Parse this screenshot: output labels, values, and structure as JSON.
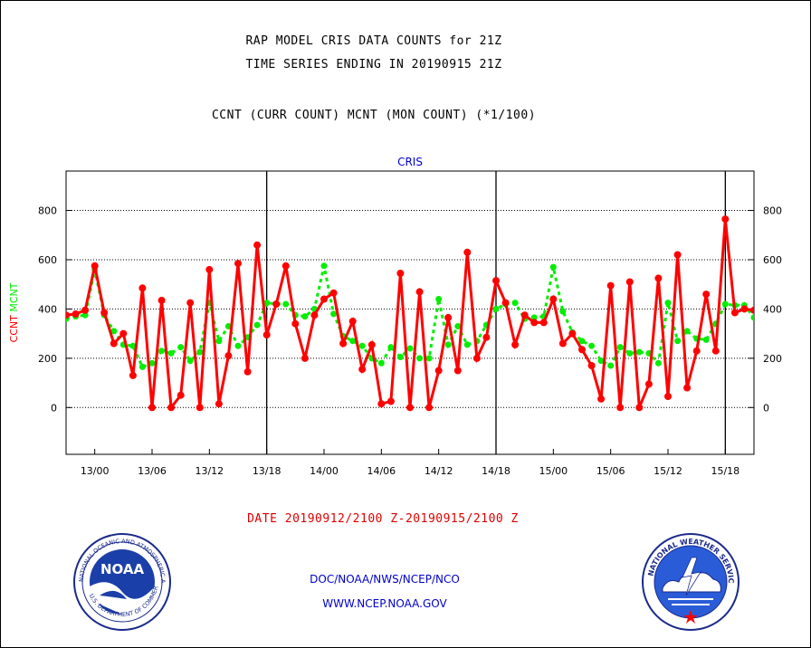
{
  "title_line1": "RAP MODEL CRIS DATA COUNTS for 21Z",
  "title_line2": "TIME SERIES ENDING IN 20190915 21Z",
  "subtitle": "CCNT (CURR COUNT) MCNT (MON COUNT) (*1/100)",
  "date_range": "DATE 20190912/2100 Z-20190915/2100 Z",
  "credit_line1": "DOC/NOAA/NWS/NCEP/NCO",
  "credit_line2": "WWW.NCEP.NOAA.GOV",
  "logos": {
    "left": "noaa-logo",
    "left_text": "NOAA",
    "right": "national-weather-service-logo"
  },
  "colors": {
    "ccnt": "#ff0000",
    "mcnt": "#00ee00",
    "panel_title": "#0000cc",
    "date_text": "#e00000"
  },
  "chart_data": {
    "type": "line",
    "panel_title": "CRIS",
    "ylabel_left": "CCNT",
    "ylabel_right": "MCNT",
    "ylim": [
      -190,
      960
    ],
    "yticks": [
      0,
      200,
      400,
      600,
      800
    ],
    "grid": "dotted horizontal at y ticks",
    "xlim": [
      -3,
      69
    ],
    "x_ticks": [
      {
        "hour": 0,
        "label": "13/00"
      },
      {
        "hour": 6,
        "label": "13/06"
      },
      {
        "hour": 12,
        "label": "13/12"
      },
      {
        "hour": 18,
        "label": "13/18"
      },
      {
        "hour": 24,
        "label": "14/00"
      },
      {
        "hour": 30,
        "label": "14/06"
      },
      {
        "hour": 36,
        "label": "14/12"
      },
      {
        "hour": 42,
        "label": "14/18"
      },
      {
        "hour": 48,
        "label": "15/00"
      },
      {
        "hour": 54,
        "label": "15/06"
      },
      {
        "hour": 60,
        "label": "15/12"
      },
      {
        "hour": 66,
        "label": "15/18"
      }
    ],
    "x_unit": "hours from 13/00",
    "day_boundaries": [
      18,
      42,
      66
    ],
    "x_start": -3,
    "series": [
      {
        "name": "CCNT",
        "values": [
          375,
          380,
          395,
          575,
          385,
          260,
          300,
          130,
          485,
          0,
          435,
          0,
          50,
          425,
          0,
          560,
          15,
          210,
          585,
          145,
          660,
          295,
          420,
          575,
          340,
          200,
          375,
          440,
          465,
          260,
          350,
          155,
          255,
          15,
          25,
          545,
          0,
          470,
          0,
          150,
          365,
          150,
          630,
          200,
          285,
          515,
          425,
          255,
          375,
          345,
          345,
          440,
          260,
          300,
          235,
          170,
          35,
          495,
          0,
          510,
          0,
          95,
          525,
          45,
          620,
          80,
          230,
          460,
          230,
          765,
          385,
          400,
          395
        ]
      },
      {
        "name": "MCNT",
        "values": [
          360,
          370,
          375,
          560,
          375,
          310,
          255,
          250,
          165,
          180,
          230,
          220,
          245,
          190,
          225,
          425,
          270,
          330,
          250,
          285,
          335,
          425,
          420,
          420,
          375,
          370,
          400,
          575,
          380,
          290,
          270,
          250,
          200,
          180,
          245,
          205,
          240,
          200,
          200,
          440,
          255,
          330,
          255,
          270,
          335,
          400,
          420,
          425,
          360,
          365,
          370,
          570,
          390,
          305,
          270,
          250,
          190,
          170,
          245,
          220,
          225,
          220,
          180,
          425,
          270,
          310,
          280,
          275,
          340,
          420,
          415,
          415,
          365
        ]
      }
    ]
  }
}
